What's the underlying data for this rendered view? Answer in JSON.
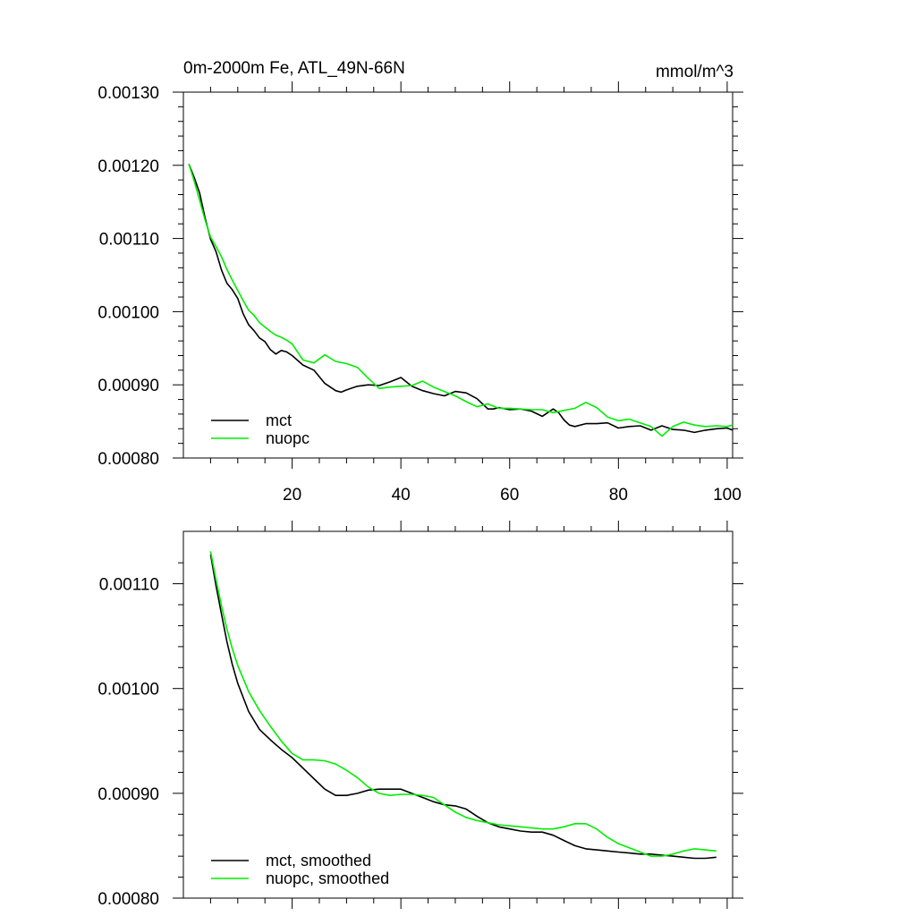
{
  "title_left": "0m-2000m Fe, ATL_49N-66N",
  "title_right": "mmol/m^3",
  "colors": {
    "mct": "#000000",
    "nuopc": "#00ee00"
  },
  "chart_data": [
    {
      "type": "line",
      "title": "0m-2000m Fe, ATL_49N-66N",
      "units": "mmol/m^3",
      "xlim": [
        0,
        101
      ],
      "ylim": [
        0.0008,
        0.0013
      ],
      "xticks": [
        20,
        40,
        60,
        80,
        100
      ],
      "xtick_labels": [
        "20",
        "40",
        "60",
        "80",
        "100"
      ],
      "yticks": [
        0.0008,
        0.0009,
        0.001,
        0.0011,
        0.0012,
        0.0013
      ],
      "ytick_labels": [
        "0.00080",
        "0.00090",
        "0.00100",
        "0.00110",
        "0.00120",
        "0.00130"
      ],
      "legend_position": "bottom-left",
      "series": [
        {
          "name": "mct",
          "color": "#000000",
          "x": [
            1,
            2,
            3,
            4,
            5,
            6,
            7,
            8,
            9,
            10,
            11,
            12,
            13,
            14,
            15,
            16,
            17,
            18,
            19,
            20,
            22,
            24,
            26,
            28,
            29,
            30,
            32,
            34,
            36,
            38,
            40,
            42,
            44,
            46,
            48,
            50,
            52,
            54,
            56,
            57,
            58,
            60,
            62,
            64,
            66,
            68,
            69,
            70,
            71,
            72,
            74,
            76,
            78,
            80,
            82,
            84,
            86,
            88,
            90,
            92,
            94,
            96,
            98,
            100,
            101
          ],
          "y": [
            0.001202,
            0.001183,
            0.001162,
            0.001128,
            0.001099,
            0.001082,
            0.001057,
            0.001039,
            0.00103,
            0.001018,
            0.000997,
            0.000982,
            0.000974,
            0.000964,
            0.000959,
            0.000948,
            0.000942,
            0.000947,
            0.000945,
            0.00094,
            0.000927,
            0.00092,
            0.000902,
            0.000892,
            0.00089,
            0.000893,
            0.000898,
            0.0009,
            0.000899,
            0.000904,
            0.00091,
            0.000898,
            0.000892,
            0.000888,
            0.000885,
            0.000891,
            0.000889,
            0.000881,
            0.000867,
            0.000867,
            0.000869,
            0.000866,
            0.000867,
            0.000864,
            0.000857,
            0.000867,
            0.000862,
            0.000852,
            0.000845,
            0.000843,
            0.000847,
            0.000847,
            0.000848,
            0.000841,
            0.000843,
            0.000844,
            0.000838,
            0.000844,
            0.000839,
            0.000838,
            0.000835,
            0.000838,
            0.00084,
            0.000841,
            0.000838
          ]
        },
        {
          "name": "nuopc",
          "color": "#00ee00",
          "x": [
            1,
            2,
            3,
            4,
            5,
            6,
            7,
            8,
            9,
            10,
            11,
            12,
            13,
            14,
            15,
            16,
            17,
            18,
            19,
            20,
            22,
            24,
            26,
            28,
            30,
            32,
            34,
            36,
            38,
            40,
            42,
            44,
            46,
            48,
            50,
            52,
            54,
            56,
            58,
            60,
            62,
            64,
            66,
            68,
            70,
            72,
            74,
            76,
            78,
            80,
            82,
            84,
            86,
            88,
            90,
            92,
            94,
            96,
            98,
            100,
            101
          ],
          "y": [
            0.001202,
            0.001178,
            0.001152,
            0.001125,
            0.001102,
            0.001089,
            0.001075,
            0.001058,
            0.001043,
            0.001029,
            0.001015,
            0.001002,
            0.000995,
            0.000985,
            0.000979,
            0.000973,
            0.000968,
            0.000965,
            0.000961,
            0.000956,
            0.000934,
            0.00093,
            0.000941,
            0.000932,
            0.000929,
            0.000924,
            0.000909,
            0.000895,
            0.000897,
            0.000898,
            0.000899,
            0.000905,
            0.000897,
            0.000891,
            0.000885,
            0.000877,
            0.00087,
            0.000874,
            0.000868,
            0.000868,
            0.000867,
            0.000866,
            0.000866,
            0.000862,
            0.000865,
            0.000868,
            0.000876,
            0.000869,
            0.000856,
            0.000851,
            0.000853,
            0.000848,
            0.000843,
            0.00083,
            0.000843,
            0.000849,
            0.000845,
            0.000843,
            0.000844,
            0.000843,
            0.000845
          ]
        }
      ]
    },
    {
      "type": "line",
      "title": "",
      "xlim": [
        0,
        101
      ],
      "ylim": [
        0.0008,
        0.00115
      ],
      "xticks": [
        20,
        40,
        60,
        80,
        100
      ],
      "yticks": [
        0.0008,
        0.0009,
        0.001,
        0.0011
      ],
      "ytick_labels": [
        "0.00080",
        "0.00090",
        "0.00100",
        "0.00110"
      ],
      "legend_position": "bottom-left",
      "series": [
        {
          "name": "mct, smoothed",
          "color": "#000000",
          "x": [
            5,
            6,
            7,
            8,
            9,
            10,
            12,
            14,
            16,
            18,
            20,
            22,
            24,
            26,
            28,
            30,
            32,
            34,
            36,
            38,
            40,
            42,
            44,
            46,
            48,
            50,
            52,
            54,
            56,
            58,
            60,
            62,
            64,
            66,
            68,
            70,
            72,
            74,
            76,
            78,
            80,
            82,
            84,
            86,
            88,
            90,
            92,
            94,
            96,
            98
          ],
          "y": [
            0.001128,
            0.001098,
            0.001071,
            0.001045,
            0.001023,
            0.001005,
            0.000978,
            0.000961,
            0.000951,
            0.000942,
            0.000934,
            0.000924,
            0.000914,
            0.000904,
            0.000898,
            0.000898,
            0.0009,
            0.000903,
            0.000904,
            0.000904,
            0.000904,
            0.0009,
            0.000896,
            0.000892,
            0.000889,
            0.000888,
            0.000885,
            0.000878,
            0.000872,
            0.000868,
            0.000866,
            0.000864,
            0.000863,
            0.000863,
            0.00086,
            0.000855,
            0.00085,
            0.000847,
            0.000846,
            0.000845,
            0.000844,
            0.000843,
            0.000842,
            0.000842,
            0.000841,
            0.00084,
            0.000839,
            0.000838,
            0.000838,
            0.000839
          ]
        },
        {
          "name": "nuopc, smoothed",
          "color": "#00ee00",
          "x": [
            5,
            6,
            7,
            8,
            9,
            10,
            12,
            14,
            16,
            18,
            20,
            22,
            24,
            26,
            28,
            30,
            32,
            34,
            36,
            38,
            40,
            42,
            44,
            46,
            48,
            50,
            52,
            54,
            56,
            58,
            60,
            62,
            64,
            66,
            68,
            70,
            72,
            74,
            76,
            78,
            80,
            82,
            84,
            86,
            88,
            90,
            92,
            94,
            96,
            98
          ],
          "y": [
            0.001131,
            0.001104,
            0.001079,
            0.001057,
            0.001038,
            0.001022,
            0.000997,
            0.000979,
            0.000964,
            0.00095,
            0.000938,
            0.000932,
            0.000932,
            0.000931,
            0.000928,
            0.000922,
            0.000915,
            0.000906,
            0.0009,
            0.000898,
            0.000899,
            0.000899,
            0.000898,
            0.000896,
            0.000889,
            0.000882,
            0.000877,
            0.000874,
            0.000872,
            0.00087,
            0.000869,
            0.000868,
            0.000867,
            0.000866,
            0.000866,
            0.000868,
            0.000871,
            0.000871,
            0.000866,
            0.000858,
            0.000852,
            0.000848,
            0.000844,
            0.00084,
            0.00084,
            0.000842,
            0.000845,
            0.000847,
            0.000846,
            0.000845
          ]
        }
      ]
    }
  ]
}
